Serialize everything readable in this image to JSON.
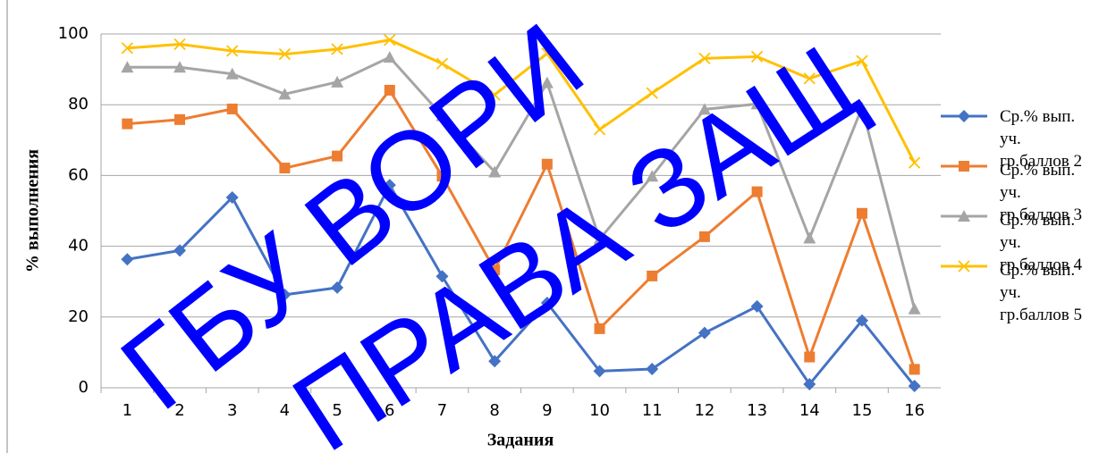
{
  "chart_data": {
    "type": "line",
    "xlabel": "Задания",
    "ylabel": "% выполнения",
    "categories": [
      "1",
      "2",
      "3",
      "4",
      "5",
      "6",
      "7",
      "8",
      "9",
      "10",
      "11",
      "12",
      "13",
      "14",
      "15",
      "16"
    ],
    "series": [
      {
        "name": "Ср.% вып. уч. гр.баллов 2",
        "color": "#4472c4",
        "marker": "diamond",
        "values": [
          36.3,
          38.8,
          53.8,
          26.3,
          28.3,
          57.3,
          31.5,
          7.5,
          24.0,
          4.7,
          5.3,
          15.5,
          23.0,
          1.0,
          19.0,
          0.5
        ]
      },
      {
        "name": "Ср.% вып. уч. гр.баллов 3",
        "color": "#ed7d31",
        "marker": "square",
        "values": [
          74.6,
          75.8,
          78.8,
          62.1,
          65.5,
          84.1,
          59.8,
          33.3,
          63.2,
          16.7,
          31.6,
          42.7,
          55.4,
          8.7,
          49.3,
          5.2
        ]
      },
      {
        "name": "Ср.% вып. уч. гр.баллов 4",
        "color": "#a5a5a5",
        "marker": "triangle",
        "values": [
          90.6,
          90.6,
          88.7,
          83.0,
          86.4,
          93.4,
          76.9,
          61.0,
          86.2,
          42.0,
          59.8,
          78.7,
          80.2,
          42.3,
          79.2,
          22.3
        ]
      },
      {
        "name": "Ср.% вып. уч. гр.баллов 5",
        "color": "#ffc000",
        "marker": "x",
        "values": [
          96.0,
          97.1,
          95.2,
          94.3,
          95.7,
          98.3,
          91.6,
          82.8,
          94.5,
          73.0,
          83.3,
          93.1,
          93.6,
          87.4,
          92.4,
          63.6
        ]
      }
    ],
    "ylim": [
      0,
      100
    ],
    "yticks": [
      0,
      20,
      40,
      60,
      80,
      100
    ],
    "grid": true,
    "legend": "right",
    "annotations": [
      "ГБУ ВОРИ",
      "ПРАВА ЗАЩ"
    ]
  }
}
